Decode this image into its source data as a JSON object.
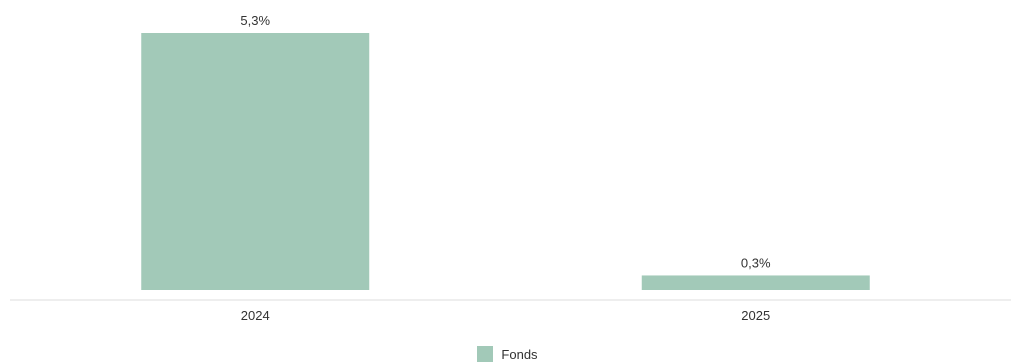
{
  "chart_data": {
    "type": "bar",
    "categories": [
      "2024",
      "2025"
    ],
    "series": [
      {
        "name": "Fonds",
        "values": [
          5.3,
          0.3
        ],
        "labels": [
          "5,3%",
          "0,3%"
        ],
        "color": "#a2c9b8"
      }
    ],
    "title": "",
    "xlabel": "",
    "ylabel": "",
    "ylim": [
      0,
      5.3
    ],
    "grid": false,
    "baseline_color": "#eeeeee",
    "legend_position": "bottom-center"
  }
}
